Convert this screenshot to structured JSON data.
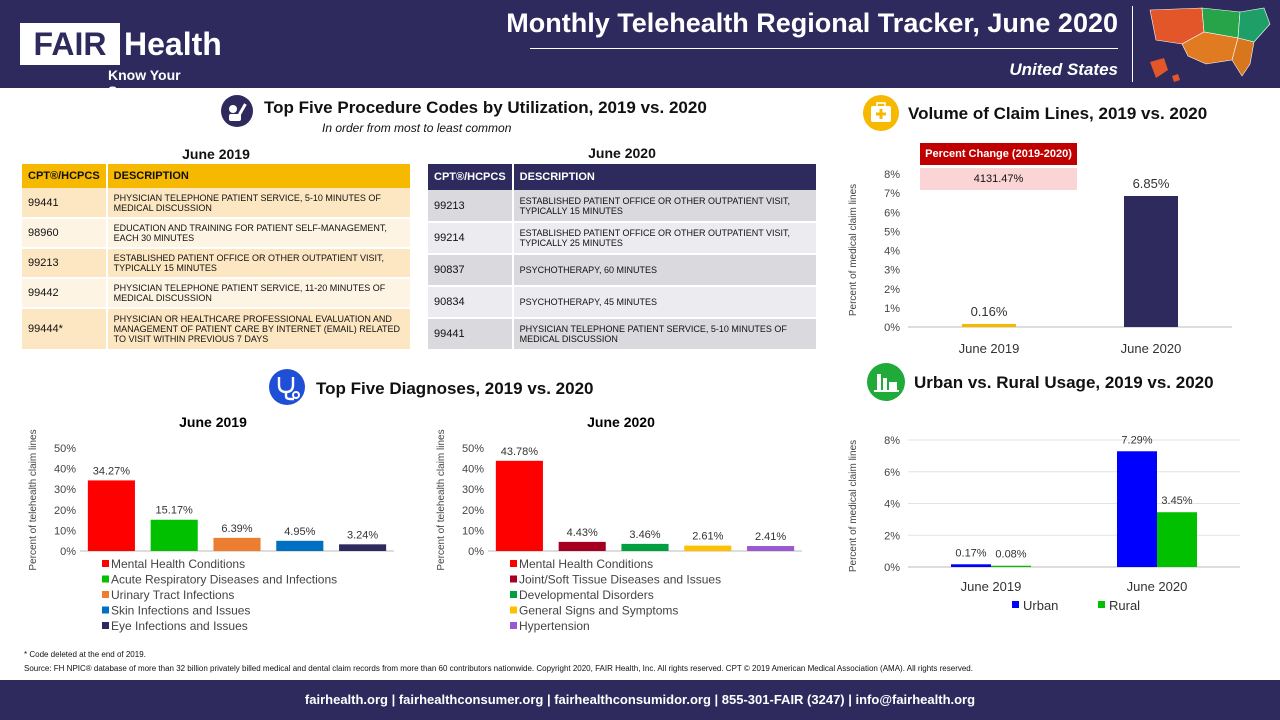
{
  "header": {
    "logo_main": "FAIR",
    "logo_second": "Health",
    "logo_tagline": "Know Your Source",
    "title": "Monthly Telehealth Regional Tracker, June 2020",
    "region": "United States"
  },
  "procedures": {
    "title": "Top Five Procedure Codes by Utilization, 2019 vs. 2020",
    "subtitle": "In order from most to least common",
    "col_code": "CPT®/HCPCS",
    "col_desc": "DESCRIPTION",
    "y2019": {
      "heading": "June 2019",
      "rows": [
        {
          "code": "99441",
          "desc": "PHYSICIAN TELEPHONE PATIENT SERVICE, 5-10 MINUTES OF MEDICAL DISCUSSION"
        },
        {
          "code": "98960",
          "desc": "EDUCATION AND TRAINING FOR PATIENT SELF-MANAGEMENT, EACH 30 MINUTES"
        },
        {
          "code": "99213",
          "desc": "ESTABLISHED PATIENT OFFICE OR OTHER OUTPATIENT VISIT, TYPICALLY 15 MINUTES"
        },
        {
          "code": "99442",
          "desc": "PHYSICIAN TELEPHONE PATIENT SERVICE, 11-20 MINUTES OF MEDICAL DISCUSSION"
        },
        {
          "code": "99444*",
          "desc": "PHYSICIAN OR HEALTHCARE PROFESSIONAL EVALUATION AND MANAGEMENT OF PATIENT CARE BY INTERNET (EMAIL) RELATED TO VISIT WITHIN PREVIOUS 7 DAYS"
        }
      ]
    },
    "y2020": {
      "heading": "June 2020",
      "rows": [
        {
          "code": "99213",
          "desc": "ESTABLISHED PATIENT OFFICE OR OTHER OUTPATIENT VISIT, TYPICALLY 15 MINUTES"
        },
        {
          "code": "99214",
          "desc": "ESTABLISHED PATIENT OFFICE OR OTHER OUTPATIENT VISIT, TYPICALLY 25 MINUTES"
        },
        {
          "code": "90837",
          "desc": "PSYCHOTHERAPY, 60 MINUTES"
        },
        {
          "code": "90834",
          "desc": "PSYCHOTHERAPY, 45 MINUTES"
        },
        {
          "code": "99441",
          "desc": "PHYSICIAN TELEPHONE PATIENT SERVICE, 5-10 MINUTES OF MEDICAL DISCUSSION"
        }
      ]
    }
  },
  "diagnoses_title": "Top Five Diagnoses, 2019 vs. 2020",
  "volume_title": "Volume of Claim Lines, 2019 vs. 2020",
  "urban_title": "Urban vs. Rural Usage, 2019 vs. 2020",
  "percent_change": {
    "label": "Percent Change (2019-2020)",
    "value": "4131.47%"
  },
  "chart_data": [
    {
      "id": "diag2019",
      "type": "bar",
      "title": "June 2019",
      "ylabel": "Percent of telehealth  claim  lines",
      "ylim": [
        0,
        50
      ],
      "yticks": [
        "0%",
        "10%",
        "20%",
        "30%",
        "40%",
        "50%"
      ],
      "categories": [
        "Mental Health Conditions",
        "Acute Respiratory Diseases and Infections",
        "Urinary Tract Infections",
        "Skin Infections and Issues",
        "Eye Infections and Issues"
      ],
      "values": [
        34.27,
        15.17,
        6.39,
        4.95,
        3.24
      ],
      "labels": [
        "34.27%",
        "15.17%",
        "6.39%",
        "4.95%",
        "3.24%"
      ],
      "colors": [
        "#ff0000",
        "#00c000",
        "#ed7d31",
        "#0070c0",
        "#2e2a5e"
      ]
    },
    {
      "id": "diag2020",
      "type": "bar",
      "title": "June 2020",
      "ylabel": "Percent of telehealth  claim  lines",
      "ylim": [
        0,
        50
      ],
      "yticks": [
        "0%",
        "10%",
        "20%",
        "30%",
        "40%",
        "50%"
      ],
      "categories": [
        "Mental Health Conditions",
        "Joint/Soft Tissue Diseases and Issues",
        "Developmental Disorders",
        "General Signs and Symptoms",
        "Hypertension"
      ],
      "values": [
        43.78,
        4.43,
        3.46,
        2.61,
        2.41
      ],
      "labels": [
        "43.78%",
        "4.43%",
        "3.46%",
        "2.61%",
        "2.41%"
      ],
      "colors": [
        "#ff0000",
        "#a50021",
        "#00a040",
        "#ffc000",
        "#9b59d0"
      ]
    },
    {
      "id": "volume",
      "type": "bar",
      "title": "Volume of Claim Lines, 2019 vs. 2020",
      "ylabel": "Percent of medical  claim  lines",
      "ylim": [
        0,
        8
      ],
      "yticks": [
        "0%",
        "1%",
        "2%",
        "3%",
        "4%",
        "5%",
        "6%",
        "7%",
        "8%"
      ],
      "categories": [
        "June 2019",
        "June 2020"
      ],
      "values": [
        0.16,
        6.85
      ],
      "labels": [
        "0.16%",
        "6.85%"
      ],
      "colors": [
        "#f7b900",
        "#2e2a5e"
      ]
    },
    {
      "id": "urban",
      "type": "bar",
      "title": "Urban vs. Rural Usage, 2019 vs. 2020",
      "ylabel": "Percent of medical  claim  lines",
      "ylim": [
        0,
        8
      ],
      "yticks": [
        "0%",
        "2%",
        "4%",
        "6%",
        "8%"
      ],
      "categories": [
        "June 2019",
        "June 2020"
      ],
      "series": [
        {
          "name": "Urban",
          "values": [
            0.17,
            7.29
          ],
          "labels": [
            "0.17%",
            "7.29%"
          ],
          "color": "#0000ff"
        },
        {
          "name": "Rural",
          "values": [
            0.08,
            3.45
          ],
          "labels": [
            "0.08%",
            "3.45%"
          ],
          "color": "#00c000"
        }
      ]
    }
  ],
  "footnote": "* Code deleted at the end of 2019.",
  "source": "Source: FH NPIC® database of more than 32 billion privately billed medical and dental claim records from more than 60 contributors nationwide. Copyright 2020, FAIR Health, Inc. All rights reserved. CPT © 2019 American Medical Association (AMA). All rights reserved.",
  "footer": "fairhealth.org  |  fairhealthconsumer.org  |  fairhealthconsumidor.org  |  855-301-FAIR  (3247)  |  info@fairhealth.org"
}
